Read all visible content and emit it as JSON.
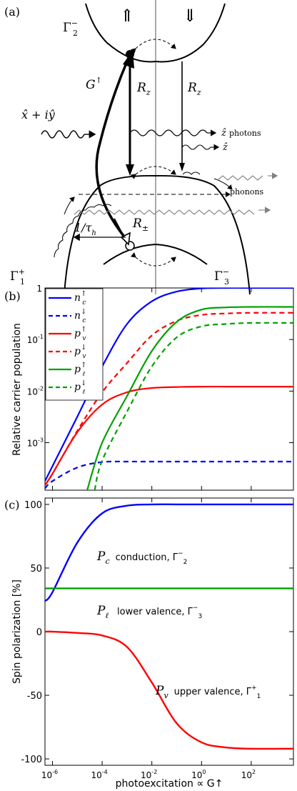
{
  "panel_a": {
    "label": "(a)",
    "arrow_up": "⇑",
    "arrow_down": "⇓",
    "gamma2": "Γ",
    "gamma2_sup": "−",
    "gamma2_sub": "2",
    "G_label": "G",
    "G_sup": "↑",
    "light_label": "x̂ + iŷ",
    "Rz_left": "R",
    "Rz_right": "R",
    "Rz_sub": "z",
    "photons_label": "ẑ",
    "photons_text": "photons",
    "z_label": "ẑ",
    "phonons_label": "phonons",
    "tau_label": "1/τ",
    "tau_sub": "h",
    "Rpm_label": "R",
    "Rpm_sub": "±",
    "gamma1": "Γ",
    "gamma1_sup": "+",
    "gamma1_sub": "1",
    "gamma3": "Γ",
    "gamma3_sup": "−",
    "gamma3_sub": "3"
  },
  "panel_b": {
    "label": "(b)",
    "colors": {
      "blue": "#0000ff",
      "red": "#ff0000",
      "green": "#00a000"
    }
  },
  "panel_c": {
    "label": "(c)",
    "annotations": [
      {
        "sym": "P",
        "sub": "c",
        "text": "conduction, Γ",
        "tsup": "−",
        "tsub": "2"
      },
      {
        "sym": "P",
        "sub": "ℓ",
        "text": "lower valence, Γ",
        "tsup": "−",
        "tsub": "3"
      },
      {
        "sym": "P",
        "sub": "v",
        "text": "upper valence, Γ",
        "tsup": "+",
        "tsub": "1"
      }
    ]
  },
  "chart_data": [
    {
      "type": "line",
      "title": "",
      "xlabel": "",
      "ylabel": "Relative carrier population",
      "yscale": "log",
      "ylim": [
        0.00012,
        1
      ],
      "xscale": "log",
      "xlim": [
        5e-07,
        5000
      ],
      "yticks": [
        "10",
        "10",
        "10",
        "1"
      ],
      "ytick_exps": [
        "-3",
        "-2",
        "-1",
        ""
      ],
      "ytick_values": [
        0.001,
        0.01,
        0.1,
        1
      ],
      "legend_position": "top-left",
      "series": [
        {
          "name": "n",
          "sub": "c",
          "sup": "↑",
          "color": "#0000ff",
          "dash": "solid",
          "x": [
            5e-07,
            1e-06,
            1e-05,
            0.0001,
            0.001,
            0.01,
            0.1,
            1,
            10,
            100,
            5000
          ],
          "y": [
            0.00018,
            0.00035,
            0.0032,
            0.03,
            0.2,
            0.55,
            0.85,
            0.98,
            1.0,
            1.0,
            1.0
          ]
        },
        {
          "name": "n",
          "sub": "c",
          "sup": "↓",
          "color": "#0000ff",
          "dash": "dashed",
          "x": [
            5e-07,
            1e-06,
            1e-05,
            0.0001,
            0.001,
            0.01,
            0.1,
            1,
            10,
            100,
            5000
          ],
          "y": [
            0.00013,
            0.00018,
            0.00033,
            0.00042,
            0.00043,
            0.00043,
            0.00043,
            0.00043,
            0.00043,
            0.00043,
            0.00043
          ]
        },
        {
          "name": "p",
          "sub": "v",
          "sup": "↑",
          "color": "#ff0000",
          "dash": "solid",
          "x": [
            5e-07,
            1e-06,
            1e-05,
            0.0001,
            0.001,
            0.01,
            0.1,
            1,
            10,
            100,
            5000
          ],
          "y": [
            0.00015,
            0.00025,
            0.0016,
            0.0055,
            0.0095,
            0.0115,
            0.012,
            0.0122,
            0.0122,
            0.0122,
            0.0122
          ]
        },
        {
          "name": "p",
          "sub": "v",
          "sup": "↓",
          "color": "#ff0000",
          "dash": "dashed",
          "x": [
            5e-07,
            1e-06,
            1e-05,
            0.0001,
            0.001,
            0.01,
            0.1,
            1,
            10,
            100,
            5000
          ],
          "y": [
            0.00015,
            0.00025,
            0.0017,
            0.0095,
            0.035,
            0.12,
            0.23,
            0.3,
            0.32,
            0.33,
            0.33
          ]
        },
        {
          "name": "p",
          "sub": "ℓ",
          "sup": "↑",
          "color": "#00a000",
          "dash": "solid",
          "x": [
            2.5e-05,
            0.0001,
            0.001,
            0.01,
            0.1,
            1,
            10,
            100,
            5000
          ],
          "y": [
            0.00012,
            0.001,
            0.008,
            0.06,
            0.22,
            0.38,
            0.42,
            0.43,
            0.43
          ]
        },
        {
          "name": "p",
          "sub": "ℓ",
          "sup": "↓",
          "color": "#00a000",
          "dash": "dashed",
          "x": [
            5e-05,
            0.0001,
            0.001,
            0.01,
            0.1,
            1,
            10,
            100,
            5000
          ],
          "y": [
            0.00012,
            0.00045,
            0.004,
            0.03,
            0.11,
            0.18,
            0.2,
            0.21,
            0.21
          ]
        }
      ]
    },
    {
      "type": "line",
      "title": "",
      "xlabel": "photoexcitation ∝ G↑",
      "ylabel": "Spin polarization [%]",
      "xscale": "log",
      "xlim": [
        5e-07,
        5000
      ],
      "ylim": [
        -105,
        105
      ],
      "xticks": [
        "10",
        "10",
        "10",
        "10",
        "10"
      ],
      "xtick_exps": [
        "-6",
        "-4",
        "-2",
        "0",
        "2"
      ],
      "xtick_values": [
        1e-06,
        0.0001,
        0.01,
        1,
        100
      ],
      "yticks": [
        "-100",
        "-50",
        "0",
        "50",
        "100"
      ],
      "ytick_values": [
        -100,
        -50,
        0,
        50,
        100
      ],
      "series": [
        {
          "name": "P_c",
          "color": "#0000ff",
          "x": [
            5e-07,
            1e-06,
            1e-05,
            0.0001,
            0.001,
            0.01,
            0.1,
            1,
            10,
            100,
            5000
          ],
          "y": [
            24,
            31,
            70,
            93,
            99,
            100,
            100,
            100,
            100,
            100,
            100
          ]
        },
        {
          "name": "P_l",
          "color": "#00a000",
          "x": [
            5e-07,
            5000
          ],
          "y": [
            34,
            34
          ]
        },
        {
          "name": "P_v",
          "color": "#ff0000",
          "x": [
            5e-07,
            1e-06,
            1e-05,
            0.0001,
            0.001,
            0.01,
            0.1,
            1,
            10,
            100,
            5000
          ],
          "y": [
            0,
            0,
            -1,
            -3,
            -12,
            -40,
            -72,
            -87,
            -91,
            -92,
            -92
          ]
        }
      ]
    }
  ]
}
